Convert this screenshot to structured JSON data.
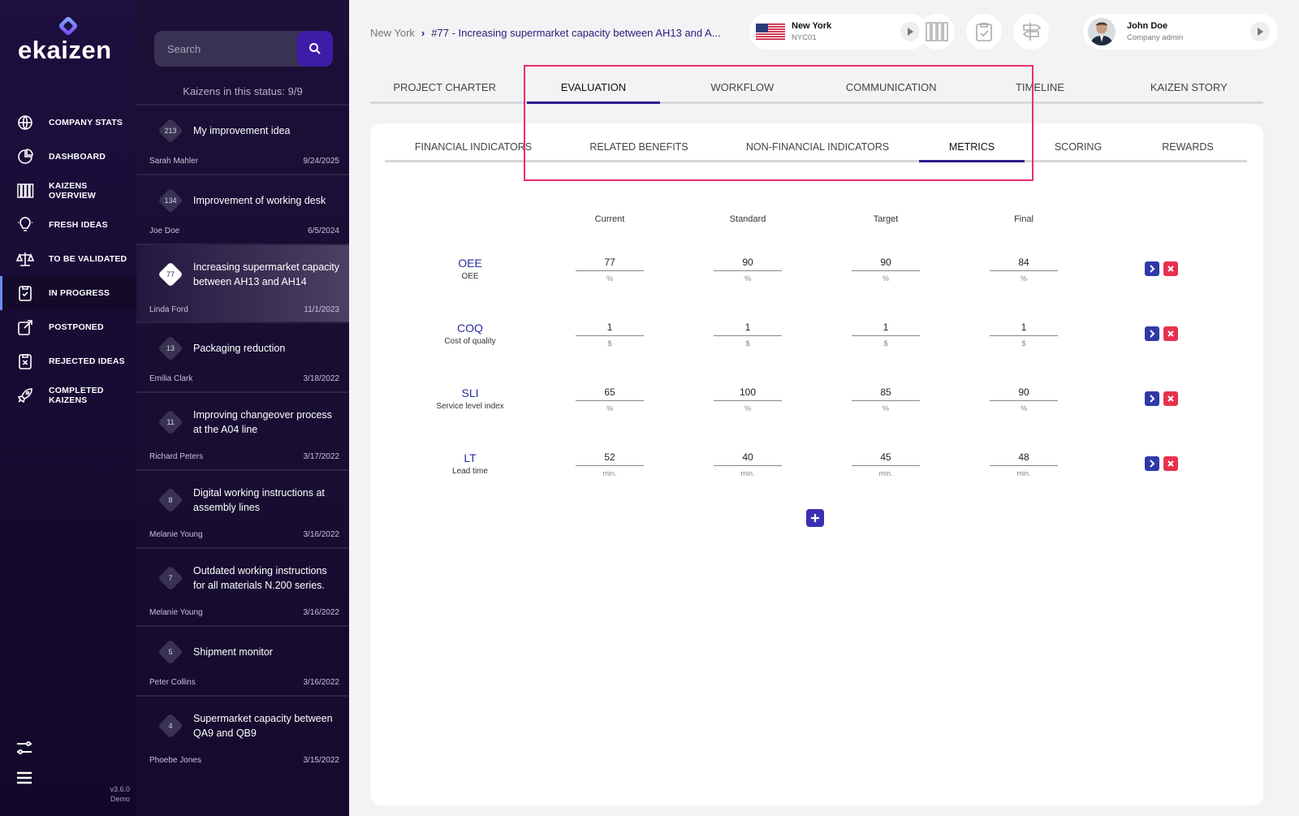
{
  "app": {
    "logo_text": "ekaizen",
    "version": "v3.6.0",
    "edition": "Demo"
  },
  "nav": {
    "items": [
      {
        "label": "COMPANY STATS",
        "icon": "globe-stats-icon",
        "active": false
      },
      {
        "label": "DASHBOARD",
        "icon": "pie-chart-icon",
        "active": false
      },
      {
        "label": "KAIZENS OVERVIEW",
        "icon": "columns-icon",
        "active": false
      },
      {
        "label": "FRESH IDEAS",
        "icon": "lightbulb-icon",
        "active": false
      },
      {
        "label": "TO BE VALIDATED",
        "icon": "scales-icon",
        "active": false
      },
      {
        "label": "IN PROGRESS",
        "icon": "clipboard-progress-icon",
        "active": true
      },
      {
        "label": "POSTPONED",
        "icon": "postpone-icon",
        "active": false
      },
      {
        "label": "REJECTED IDEAS",
        "icon": "clipboard-x-icon",
        "active": false
      },
      {
        "label": "COMPLETED KAIZENS",
        "icon": "rocket-icon",
        "active": false
      }
    ],
    "bottom": [
      "filters-icon",
      "menu-icon"
    ]
  },
  "list": {
    "search_placeholder": "Search",
    "status_count": "Kaizens in this status: 9/9",
    "items": [
      {
        "num": "213",
        "title": "My improvement idea",
        "author": "Sarah Mahler",
        "date": "9/24/2025",
        "active": false
      },
      {
        "num": "134",
        "title": "Improvement of working desk",
        "author": "Joe Doe",
        "date": "6/5/2024",
        "active": false
      },
      {
        "num": "77",
        "title": "Increasing supermarket capacity between AH13 and AH14",
        "author": "Linda Ford",
        "date": "11/1/2023",
        "active": true
      },
      {
        "num": "13",
        "title": "Packaging reduction",
        "author": "Emilia Clark",
        "date": "3/18/2022",
        "active": false
      },
      {
        "num": "11",
        "title": "Improving changeover process at the A04 line",
        "author": "Richard Peters",
        "date": "3/17/2022",
        "active": false
      },
      {
        "num": "8",
        "title": "Digital working instructions at assembly lines",
        "author": "Melanie Young",
        "date": "3/16/2022",
        "active": false
      },
      {
        "num": "7",
        "title": "Outdated working instructions for all materials N.200 series.",
        "author": "Melanie Young",
        "date": "3/16/2022",
        "active": false
      },
      {
        "num": "5",
        "title": "Shipment monitor",
        "author": "Peter Collins",
        "date": "3/16/2022",
        "active": false
      },
      {
        "num": "4",
        "title": "Supermarket capacity between QA9 and QB9",
        "author": "Phoebe Jones",
        "date": "3/15/2022",
        "active": false
      }
    ]
  },
  "header": {
    "breadcrumb_root": "New York",
    "breadcrumb_sep": "›",
    "breadcrumb_current": "#77 - Increasing supermarket capacity between AH13 and A...",
    "location": {
      "city": "New York",
      "code": "NYC01"
    },
    "user": {
      "name": "John Doe",
      "role": "Company admin"
    }
  },
  "tabs": [
    {
      "label": "PROJECT CHARTER",
      "active": false
    },
    {
      "label": "EVALUATION",
      "active": true
    },
    {
      "label": "WORKFLOW",
      "active": false
    },
    {
      "label": "COMMUNICATION",
      "active": false
    },
    {
      "label": "TIMELINE",
      "active": false
    },
    {
      "label": "KAIZEN STORY",
      "active": false
    }
  ],
  "subtabs": [
    {
      "label": "FINANCIAL INDICATORS",
      "active": false
    },
    {
      "label": "RELATED BENEFITS",
      "active": false
    },
    {
      "label": "NON-FINANCIAL INDICATORS",
      "active": false
    },
    {
      "label": "METRICS",
      "active": true
    },
    {
      "label": "SCORING",
      "active": false
    },
    {
      "label": "REWARDS",
      "active": false
    }
  ],
  "metrics": {
    "columns": [
      "Current",
      "Standard",
      "Target",
      "Final"
    ],
    "rows": [
      {
        "name": "OEE",
        "desc": "OEE",
        "values": [
          "77",
          "90",
          "90",
          "84"
        ],
        "unit": "%"
      },
      {
        "name": "COQ",
        "desc": "Cost of quality",
        "values": [
          "1",
          "1",
          "1",
          "1"
        ],
        "unit": "$"
      },
      {
        "name": "SLI",
        "desc": "Service level index",
        "values": [
          "65",
          "100",
          "85",
          "90"
        ],
        "unit": "%"
      },
      {
        "name": "LT",
        "desc": "Lead time",
        "values": [
          "52",
          "40",
          "45",
          "48"
        ],
        "unit": "min."
      }
    ]
  },
  "colors": {
    "accent": "#2b1c8c",
    "nav_bg": "#1d0f3e",
    "delete": "#e8304f",
    "highlight": "#e8306a"
  }
}
